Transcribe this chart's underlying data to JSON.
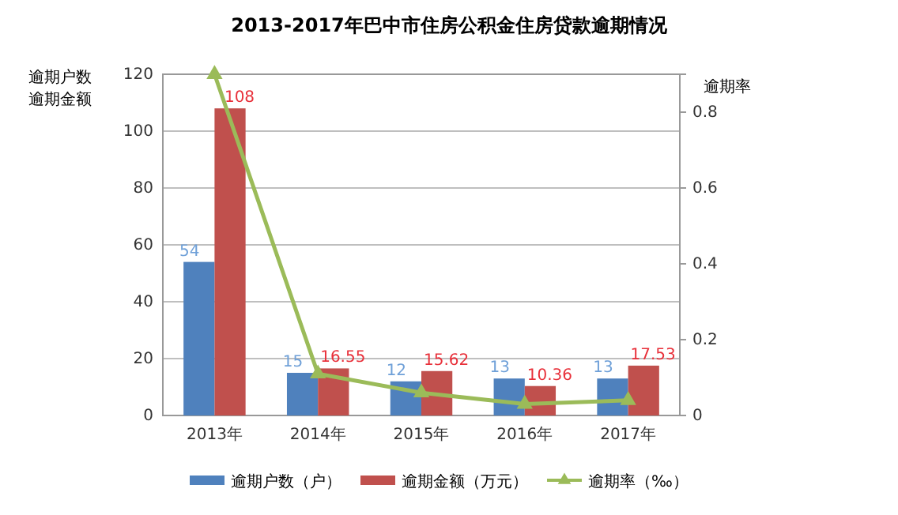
{
  "chart_data": {
    "type": "bar",
    "title": "2013-2017年巴中市住房公积金住房贷款逾期情况",
    "ylabel": "逾期户数逾期金额",
    "y2label": "逾期率",
    "categories": [
      "2013年",
      "2014年",
      "2015年",
      "2016年",
      "2017年"
    ],
    "series": [
      {
        "name": "逾期户数（户）",
        "color": "#4f81bd",
        "values": [
          54,
          15,
          12,
          13,
          13
        ],
        "value_labels": [
          "54",
          "15",
          "12",
          "13",
          "13"
        ]
      },
      {
        "name": "逾期金额（万元）",
        "color": "#c0504d",
        "values": [
          108,
          16.55,
          15.62,
          10.36,
          17.53
        ],
        "value_labels": [
          "108",
          "16.55",
          "15.62",
          "10.36",
          "17.53"
        ]
      },
      {
        "name": "逾期率（‰）",
        "type": "line",
        "axis": "y2",
        "color": "#9bbb59",
        "marker": "triangle",
        "values": [
          0.9,
          0.11,
          0.06,
          0.03,
          0.04
        ]
      }
    ],
    "ylim": [
      0,
      120
    ],
    "yticks": [
      0,
      20,
      40,
      60,
      80,
      100,
      120
    ],
    "y2lim": [
      0,
      0.9
    ],
    "y2ticks": [
      0,
      0.2,
      0.4,
      0.6,
      0.8
    ],
    "grid": "y",
    "legend": "bottom"
  }
}
